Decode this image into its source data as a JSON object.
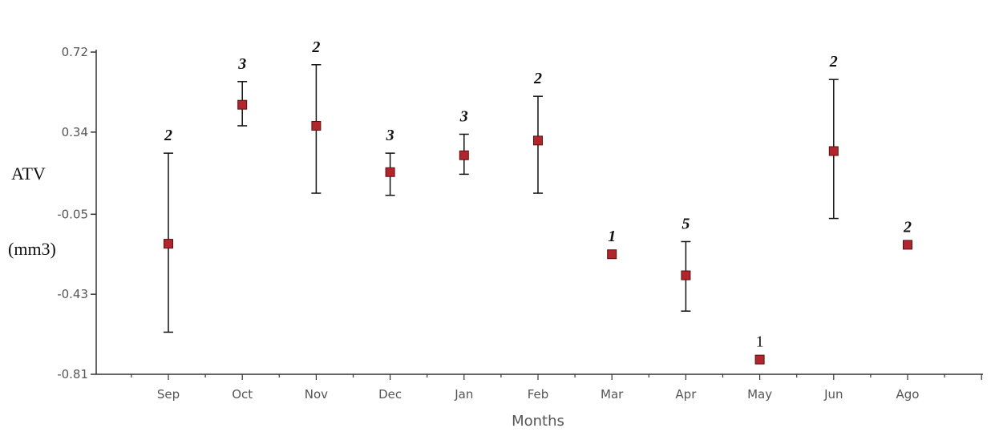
{
  "chart_data": {
    "type": "scatter",
    "title": "",
    "xlabel": "Months",
    "ylabel_line1": "ATV",
    "ylabel_line2": "(mm3)",
    "ylim": [
      -0.81,
      0.72
    ],
    "yticks": [
      "0.72",
      "0.34",
      "-0.05",
      "-0.43",
      "-0.81"
    ],
    "ytick_values": [
      0.72,
      0.34,
      -0.05,
      -0.43,
      -0.81
    ],
    "categories": [
      "Sep",
      "Oct",
      "Nov",
      "Dec",
      "Jan",
      "Feb",
      "Mar",
      "Apr",
      "May",
      "Jun",
      "Ago"
    ],
    "values": [
      -0.19,
      0.47,
      0.37,
      0.15,
      0.23,
      0.3,
      -0.24,
      -0.34,
      -0.74,
      0.25,
      -0.195
    ],
    "error_low": [
      -0.61,
      0.37,
      0.05,
      0.04,
      0.14,
      0.05,
      null,
      -0.51,
      null,
      -0.07,
      null
    ],
    "error_high": [
      0.24,
      0.58,
      0.66,
      0.24,
      0.33,
      0.51,
      null,
      -0.18,
      null,
      0.59,
      null
    ],
    "n_labels": [
      "2",
      "3",
      "2",
      "3",
      "3",
      "2",
      "1",
      "5",
      "1",
      "2",
      "2"
    ],
    "n_label_italic": [
      true,
      true,
      true,
      true,
      true,
      true,
      true,
      true,
      false,
      true,
      true
    ],
    "grid": false,
    "legend": "none",
    "marker_color": "#b0262c",
    "marker_border": "#5a1012",
    "axis_color": "#333333"
  }
}
